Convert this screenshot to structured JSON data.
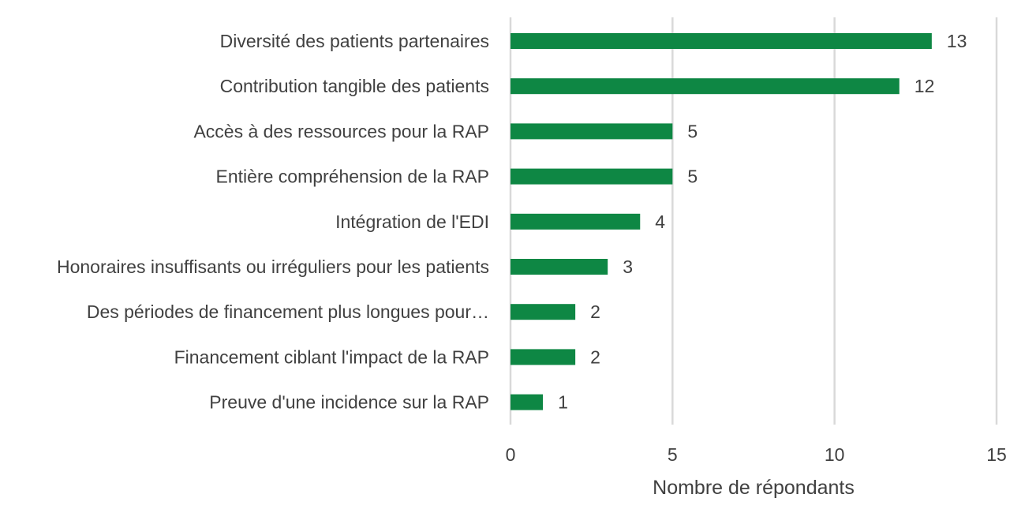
{
  "chart_data": {
    "type": "bar",
    "orientation": "horizontal",
    "categories": [
      "Diversité des patients partenaires",
      "Contribution tangible des patients",
      "Accès à des ressources pour la RAP",
      "Entière compréhension de la RAP",
      "Intégration de l'EDI",
      "Honoraires insuffisants ou irréguliers pour les patients",
      "Des périodes de financement plus longues pour…",
      "Financement ciblant l'impact de la RAP",
      "Preuve d'une incidence sur la RAP"
    ],
    "values": [
      13,
      12,
      5,
      5,
      4,
      3,
      2,
      2,
      1
    ],
    "value_labels": [
      "13",
      "12",
      "5",
      "5",
      "4",
      "3",
      "2",
      "2",
      "1"
    ],
    "title": "",
    "xlabel": "Nombre de répondants",
    "ylabel": "",
    "xlim": [
      0,
      15
    ],
    "xticks": [
      0,
      5,
      10,
      15
    ],
    "xtick_labels": [
      "0",
      "5",
      "10",
      "15"
    ],
    "grid": true,
    "legend": "none",
    "colors": {
      "bar": "#0e8744",
      "grid": "#d9d9d9",
      "text": "#404040"
    }
  }
}
